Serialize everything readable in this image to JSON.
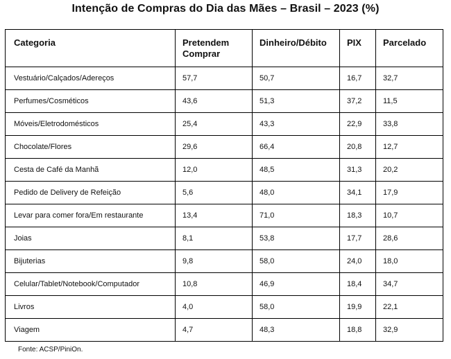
{
  "title": "Intenção de Compras do Dia das Mães – Brasil – 2023 (%)",
  "headers": [
    "Categoria",
    "Pretendem Comprar",
    "Dinheiro/Débito",
    "PIX",
    "Parcelado"
  ],
  "rows": [
    [
      "Vestuário/Calçados/Adereços",
      "57,7",
      "50,7",
      "16,7",
      "32,7"
    ],
    [
      "Perfumes/Cosméticos",
      "43,6",
      "51,3",
      "37,2",
      "11,5"
    ],
    [
      "Móveis/Eletrodomésticos",
      "25,4",
      "43,3",
      "22,9",
      "33,8"
    ],
    [
      "Chocolate/Flores",
      "29,6",
      "66,4",
      "20,8",
      "12,7"
    ],
    [
      "Cesta de Café da Manhã",
      "12,0",
      "48,5",
      "31,3",
      "20,2"
    ],
    [
      "Pedido de Delivery de Refeição",
      "5,6",
      "48,0",
      "34,1",
      "17,9"
    ],
    [
      "Levar para comer fora/Em restaurante",
      "13,4",
      "71,0",
      "18,3",
      "10,7"
    ],
    [
      "Joias",
      "8,1",
      "53,8",
      "17,7",
      "28,6"
    ],
    [
      "Bijuterias",
      "9,8",
      "58,0",
      "24,0",
      "18,0"
    ],
    [
      "Celular/Tablet/Notebook/Computador",
      "10,8",
      "46,9",
      "18,4",
      "34,7"
    ],
    [
      "Livros",
      "4,0",
      "58,0",
      "19,9",
      "22,1"
    ],
    [
      "Viagem",
      "4,7",
      "48,3",
      "18,8",
      "32,9"
    ]
  ],
  "source": "Fonte: ACSP/PiniOn."
}
